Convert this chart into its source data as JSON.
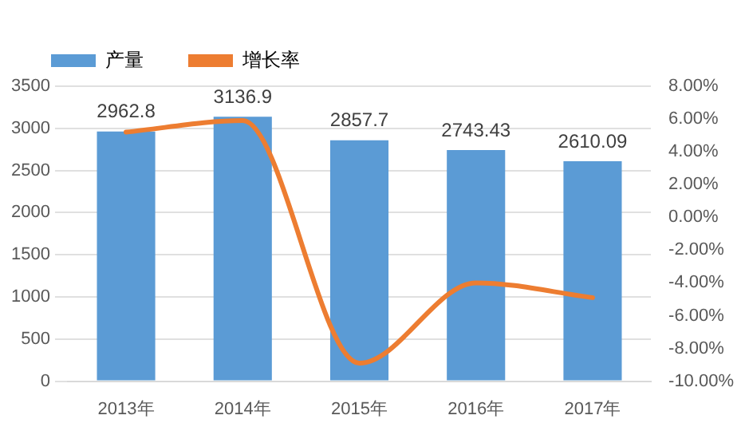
{
  "chart_data": {
    "type": "bar",
    "categories": [
      "2013年",
      "2014年",
      "2015年",
      "2016年",
      "2017年"
    ],
    "series": [
      {
        "name": "产量",
        "color": "#5b9bd5",
        "values": [
          2962.8,
          3136.9,
          2857.7,
          2743.43,
          2610.09
        ],
        "value_labels": [
          "2962.8",
          "3136.9",
          "2857.7",
          "2743.43",
          "2610.09"
        ]
      },
      {
        "name": "增长率",
        "type": "line",
        "axis": "y2",
        "color": "#ed7d31",
        "values": [
          5.2,
          5.9,
          -8.9,
          -4.0,
          -4.9
        ]
      }
    ],
    "ylim": [
      0,
      3500
    ],
    "yticks": [
      0,
      500,
      1000,
      1500,
      2000,
      2500,
      3000,
      3500
    ],
    "y2lim": [
      -10,
      8
    ],
    "y2ticks": [
      {
        "value": -10,
        "label": "-10.00%"
      },
      {
        "value": -8,
        "label": "-8.00%"
      },
      {
        "value": -6,
        "label": "-6.00%"
      },
      {
        "value": -4,
        "label": "-4.00%"
      },
      {
        "value": -2,
        "label": "-2.00%"
      },
      {
        "value": 0,
        "label": "0.00%"
      },
      {
        "value": 2,
        "label": "2.00%"
      },
      {
        "value": 4,
        "label": "4.00%"
      },
      {
        "value": 6,
        "label": "6.00%"
      },
      {
        "value": 8,
        "label": "8.00%"
      }
    ],
    "grid": "y",
    "legend": "top left",
    "marker": "none",
    "line_style": "solid"
  }
}
